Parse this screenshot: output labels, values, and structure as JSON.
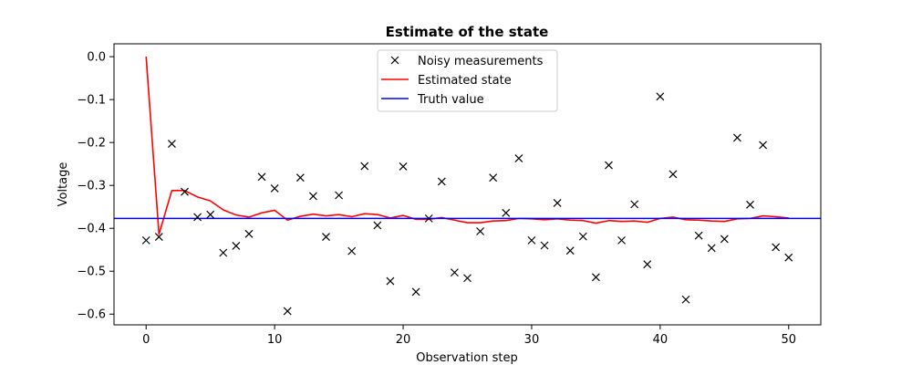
{
  "chart_data": {
    "type": "line",
    "title": "Estimate of the state",
    "xlabel": "Observation step",
    "ylabel": "Voltage",
    "xlim": [
      -2.5,
      52.5
    ],
    "ylim": [
      -0.625,
      0.03
    ],
    "xticks": [
      0,
      10,
      20,
      30,
      40,
      50
    ],
    "yticks": [
      0.0,
      -0.1,
      -0.2,
      -0.3,
      -0.4,
      -0.5,
      -0.6
    ],
    "xtick_labels": [
      "0",
      "10",
      "20",
      "30",
      "40",
      "50"
    ],
    "ytick_labels": [
      "0.0",
      "−0.1",
      "−0.2",
      "−0.3",
      "−0.4",
      "−0.5",
      "−0.6"
    ],
    "grid": false,
    "legend_position": "upper-center",
    "series": [
      {
        "name": "Noisy measurements",
        "kind": "scatter",
        "marker": "x",
        "color": "#000000",
        "x": [
          0,
          1,
          2,
          3,
          4,
          5,
          6,
          7,
          8,
          9,
          10,
          11,
          12,
          13,
          14,
          15,
          16,
          17,
          18,
          19,
          20,
          21,
          22,
          23,
          24,
          25,
          26,
          27,
          28,
          29,
          30,
          31,
          32,
          33,
          34,
          35,
          36,
          37,
          38,
          39,
          40,
          41,
          42,
          43,
          44,
          45,
          46,
          47,
          48,
          49,
          50
        ],
        "y": [
          -0.428,
          -0.42,
          -0.203,
          -0.315,
          -0.374,
          -0.368,
          -0.457,
          -0.441,
          -0.413,
          -0.28,
          -0.307,
          -0.593,
          -0.282,
          -0.325,
          -0.42,
          -0.323,
          -0.453,
          -0.255,
          -0.393,
          -0.523,
          -0.256,
          -0.548,
          -0.377,
          -0.291,
          -0.503,
          -0.516,
          -0.407,
          -0.282,
          -0.364,
          -0.237,
          -0.428,
          -0.44,
          -0.341,
          -0.452,
          -0.419,
          -0.514,
          -0.253,
          -0.428,
          -0.344,
          -0.484,
          -0.093,
          -0.274,
          -0.566,
          -0.417,
          -0.446,
          -0.425,
          -0.189,
          -0.345,
          -0.206,
          -0.444,
          -0.468
        ]
      },
      {
        "name": "Estimated state",
        "kind": "line",
        "color": "#ff0000",
        "x": [
          0,
          1,
          2,
          3,
          4,
          5,
          6,
          7,
          8,
          9,
          10,
          11,
          12,
          13,
          14,
          15,
          16,
          17,
          18,
          19,
          20,
          21,
          22,
          23,
          24,
          25,
          26,
          27,
          28,
          29,
          30,
          31,
          32,
          33,
          34,
          35,
          36,
          37,
          38,
          39,
          40,
          41,
          42,
          43,
          44,
          45,
          46,
          47,
          48,
          49,
          50
        ],
        "y": [
          0.0,
          -0.414,
          -0.312,
          -0.312,
          -0.327,
          -0.336,
          -0.357,
          -0.369,
          -0.374,
          -0.364,
          -0.358,
          -0.381,
          -0.372,
          -0.367,
          -0.371,
          -0.368,
          -0.373,
          -0.366,
          -0.368,
          -0.376,
          -0.37,
          -0.379,
          -0.379,
          -0.375,
          -0.381,
          -0.387,
          -0.387,
          -0.383,
          -0.382,
          -0.377,
          -0.378,
          -0.38,
          -0.378,
          -0.381,
          -0.382,
          -0.388,
          -0.382,
          -0.384,
          -0.383,
          -0.386,
          -0.377,
          -0.374,
          -0.38,
          -0.381,
          -0.383,
          -0.384,
          -0.378,
          -0.377,
          -0.371,
          -0.373,
          -0.376
        ]
      },
      {
        "name": "Truth value",
        "kind": "hline",
        "color": "#0000ff",
        "value": -0.377
      }
    ]
  }
}
